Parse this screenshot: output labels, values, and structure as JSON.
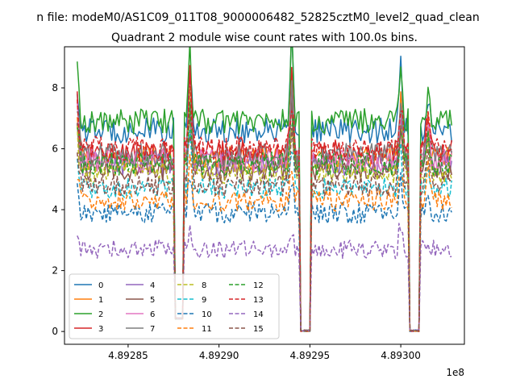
{
  "chart_data": {
    "type": "line",
    "suptitle": "n file: modeM0/AS1C09_011T08_9000006482_52825cztM0_level2_quad_clean",
    "title": "Quadrant 2 module wise count rates with 100.0s bins.",
    "xlabel": "",
    "ylabel": "",
    "x_offset_label": "1e8",
    "xlim": [
      4.892815,
      4.893035
    ],
    "ylim": [
      -0.42,
      9.35
    ],
    "x_ticks": [
      {
        "value": 4.89285,
        "label": "4.89285"
      },
      {
        "value": 4.8929,
        "label": "4.89290"
      },
      {
        "value": 4.89295,
        "label": "4.89295"
      },
      {
        "value": 4.893,
        "label": "4.89300"
      }
    ],
    "y_ticks": [
      {
        "value": 0,
        "label": "0"
      },
      {
        "value": 2,
        "label": "2"
      },
      {
        "value": 4,
        "label": "4"
      },
      {
        "value": 6,
        "label": "6"
      },
      {
        "value": 8,
        "label": "8"
      }
    ],
    "grid": false,
    "legend_position": "lower-left",
    "legend_columns": 4,
    "time_range": [
      4.892822,
      4.893028
    ],
    "bin_step": 1e-06,
    "gaps": [
      {
        "start": 4.892876,
        "end": 4.89288,
        "min_level": 0.4
      },
      {
        "start": 4.892945,
        "end": 4.89295,
        "min_level": 0.0
      },
      {
        "start": 4.893004,
        "end": 4.89301,
        "min_level": 0.0
      }
    ],
    "spikes": [
      {
        "x": 4.892822,
        "height": 1.6
      },
      {
        "x": 4.892884,
        "height": 2.4
      },
      {
        "x": 4.89294,
        "height": 2.3
      },
      {
        "x": 4.893,
        "height": 2.0
      },
      {
        "x": 4.893015,
        "height": 1.2
      }
    ],
    "series": [
      {
        "name": "0",
        "color": "#1f77b4",
        "style": "solid",
        "mean": 6.6,
        "noise": 0.3
      },
      {
        "name": "1",
        "color": "#ff7f0e",
        "style": "solid",
        "mean": 5.7,
        "noise": 0.28
      },
      {
        "name": "2",
        "color": "#2ca02c",
        "style": "solid",
        "mean": 6.9,
        "noise": 0.3
      },
      {
        "name": "3",
        "color": "#d62728",
        "style": "solid",
        "mean": 5.9,
        "noise": 0.28
      },
      {
        "name": "4",
        "color": "#9467bd",
        "style": "solid",
        "mean": 5.5,
        "noise": 0.28
      },
      {
        "name": "5",
        "color": "#8c564b",
        "style": "solid",
        "mean": 5.3,
        "noise": 0.26
      },
      {
        "name": "6",
        "color": "#e377c2",
        "style": "solid",
        "mean": 5.6,
        "noise": 0.28
      },
      {
        "name": "7",
        "color": "#7f7f7f",
        "style": "solid",
        "mean": 5.8,
        "noise": 0.28
      },
      {
        "name": "8",
        "color": "#bcbd22",
        "style": "dashed",
        "mean": 5.2,
        "noise": 0.26
      },
      {
        "name": "9",
        "color": "#17becf",
        "style": "dashed",
        "mean": 4.7,
        "noise": 0.25
      },
      {
        "name": "10",
        "color": "#1f77b4",
        "style": "dashed",
        "mean": 3.9,
        "noise": 0.25
      },
      {
        "name": "11",
        "color": "#ff7f0e",
        "style": "dashed",
        "mean": 4.3,
        "noise": 0.25
      },
      {
        "name": "12",
        "color": "#2ca02c",
        "style": "dashed",
        "mean": 5.5,
        "noise": 0.28
      },
      {
        "name": "13",
        "color": "#d62728",
        "style": "dashed",
        "mean": 6.0,
        "noise": 0.3
      },
      {
        "name": "14",
        "color": "#9467bd",
        "style": "dashed",
        "mean": 2.7,
        "noise": 0.22
      },
      {
        "name": "15",
        "color": "#8c564b",
        "style": "dashed",
        "mean": 4.8,
        "noise": 0.26
      }
    ]
  }
}
